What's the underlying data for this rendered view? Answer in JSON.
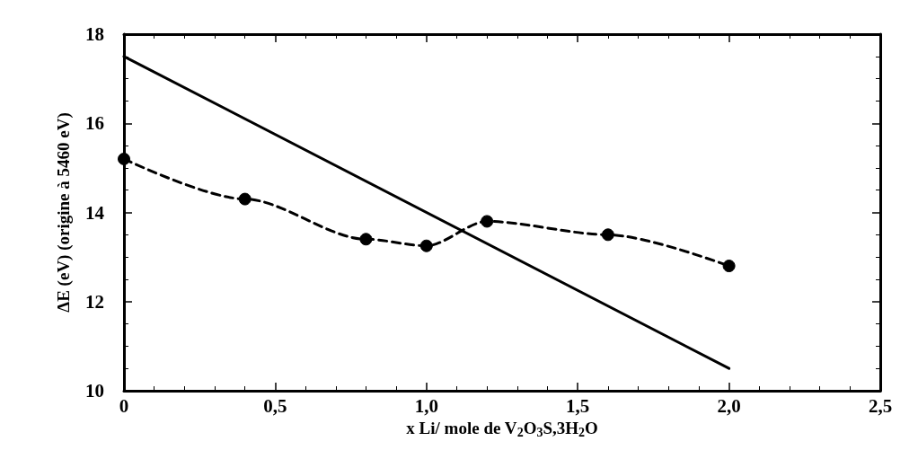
{
  "chart_data": {
    "type": "line",
    "xlabel": "x Li/ mole de V$_{2}$O$_{3}$S,3H$_{2}$O",
    "ylabel": "ΔE (eV) (origine à 5460 eV)",
    "series": [
      {
        "color": "#000000",
        "x": [
          0,
          0.4,
          0.8,
          1.0,
          1.2,
          1.6,
          2.0
        ],
        "values": [
          15.2,
          14.3,
          13.4,
          13.25,
          13.8,
          13.5,
          12.8
        ],
        "marker": "circle",
        "line_style": "dashed"
      },
      {
        "color": "#000000",
        "x": [
          0,
          2.0
        ],
        "values": [
          17.5,
          10.5
        ],
        "marker": "none",
        "line_style": "solid"
      }
    ],
    "xlim": [
      0,
      2.5
    ],
    "xticks": [
      0,
      {
        "value": 0.5,
        "label": "0,5"
      },
      {
        "value": 1.0,
        "label": "1,0"
      },
      {
        "value": 1.5,
        "label": "1,5"
      },
      {
        "value": 2.0,
        "label": "2,0"
      },
      {
        "value": 2.5,
        "label": "2,5"
      }
    ],
    "ylim": [
      10,
      18
    ],
    "yticks": [
      10,
      12,
      14,
      16,
      18
    ],
    "grid": false
  }
}
